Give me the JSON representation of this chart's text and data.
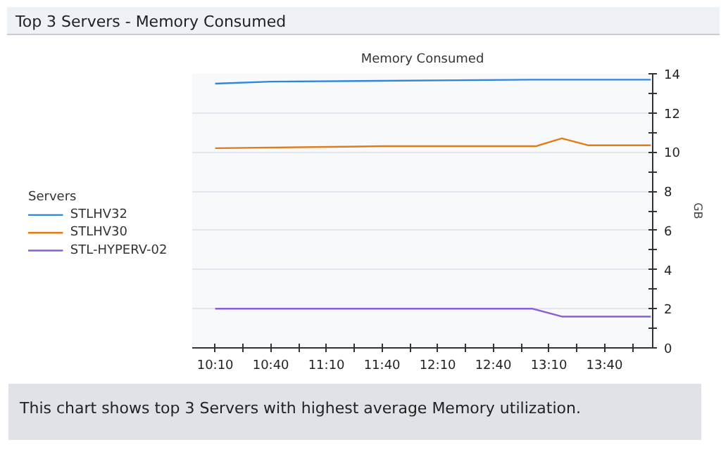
{
  "chart_data": {
    "type": "line",
    "title": "Top 3 Servers - Memory Consumed",
    "subtitle": "Memory Consumed",
    "ylabel": "GB",
    "legend_title": "Servers",
    "legend": "left",
    "grid": "y",
    "annotations": [
      "This chart shows top 3 Servers with highest average Memory utilization."
    ],
    "xlim": [
      9.96,
      14.1
    ],
    "ylim": [
      0,
      14
    ],
    "xticks": [
      {
        "value": 10.1667,
        "label": "10:10"
      },
      {
        "value": 10.4167,
        "label": null
      },
      {
        "value": 10.6667,
        "label": "10:40"
      },
      {
        "value": 10.9167,
        "label": null
      },
      {
        "value": 11.1667,
        "label": "11:10"
      },
      {
        "value": 11.4167,
        "label": null
      },
      {
        "value": 11.6667,
        "label": "11:40"
      },
      {
        "value": 11.9167,
        "label": null
      },
      {
        "value": 12.1667,
        "label": "12:10"
      },
      {
        "value": 12.4167,
        "label": null
      },
      {
        "value": 12.6667,
        "label": "12:40"
      },
      {
        "value": 12.9167,
        "label": null
      },
      {
        "value": 13.1667,
        "label": "13:10"
      },
      {
        "value": 13.4167,
        "label": null
      },
      {
        "value": 13.6667,
        "label": "13:40"
      },
      {
        "value": 13.9167,
        "label": null
      }
    ],
    "yticks": [
      0,
      {
        "value": 1,
        "label": null
      },
      2,
      {
        "value": 3,
        "label": null
      },
      4,
      {
        "value": 5,
        "label": null
      },
      6,
      {
        "value": 7,
        "label": null
      },
      8,
      {
        "value": 9,
        "label": null
      },
      10,
      {
        "value": 11,
        "label": null
      },
      12,
      {
        "value": 13,
        "label": null
      },
      14
    ],
    "series": [
      {
        "name": "STLHV32",
        "color": "#2f86e0",
        "x": [
          10.1667,
          10.6667,
          13.0,
          14.083
        ],
        "values": [
          13.5,
          13.6,
          13.7,
          13.7
        ]
      },
      {
        "name": "STLHV30",
        "color": "#e07b1a",
        "x": [
          10.1667,
          11.6667,
          13.05,
          13.283,
          13.517,
          14.083
        ],
        "values": [
          10.2,
          10.3,
          10.3,
          10.7,
          10.35,
          10.35
        ]
      },
      {
        "name": "STL-HYPERV-02",
        "color": "#8a5cd6",
        "x": [
          10.1667,
          13.02,
          13.283,
          14.083
        ],
        "values": [
          2.0,
          2.0,
          1.6,
          1.6
        ]
      }
    ]
  }
}
